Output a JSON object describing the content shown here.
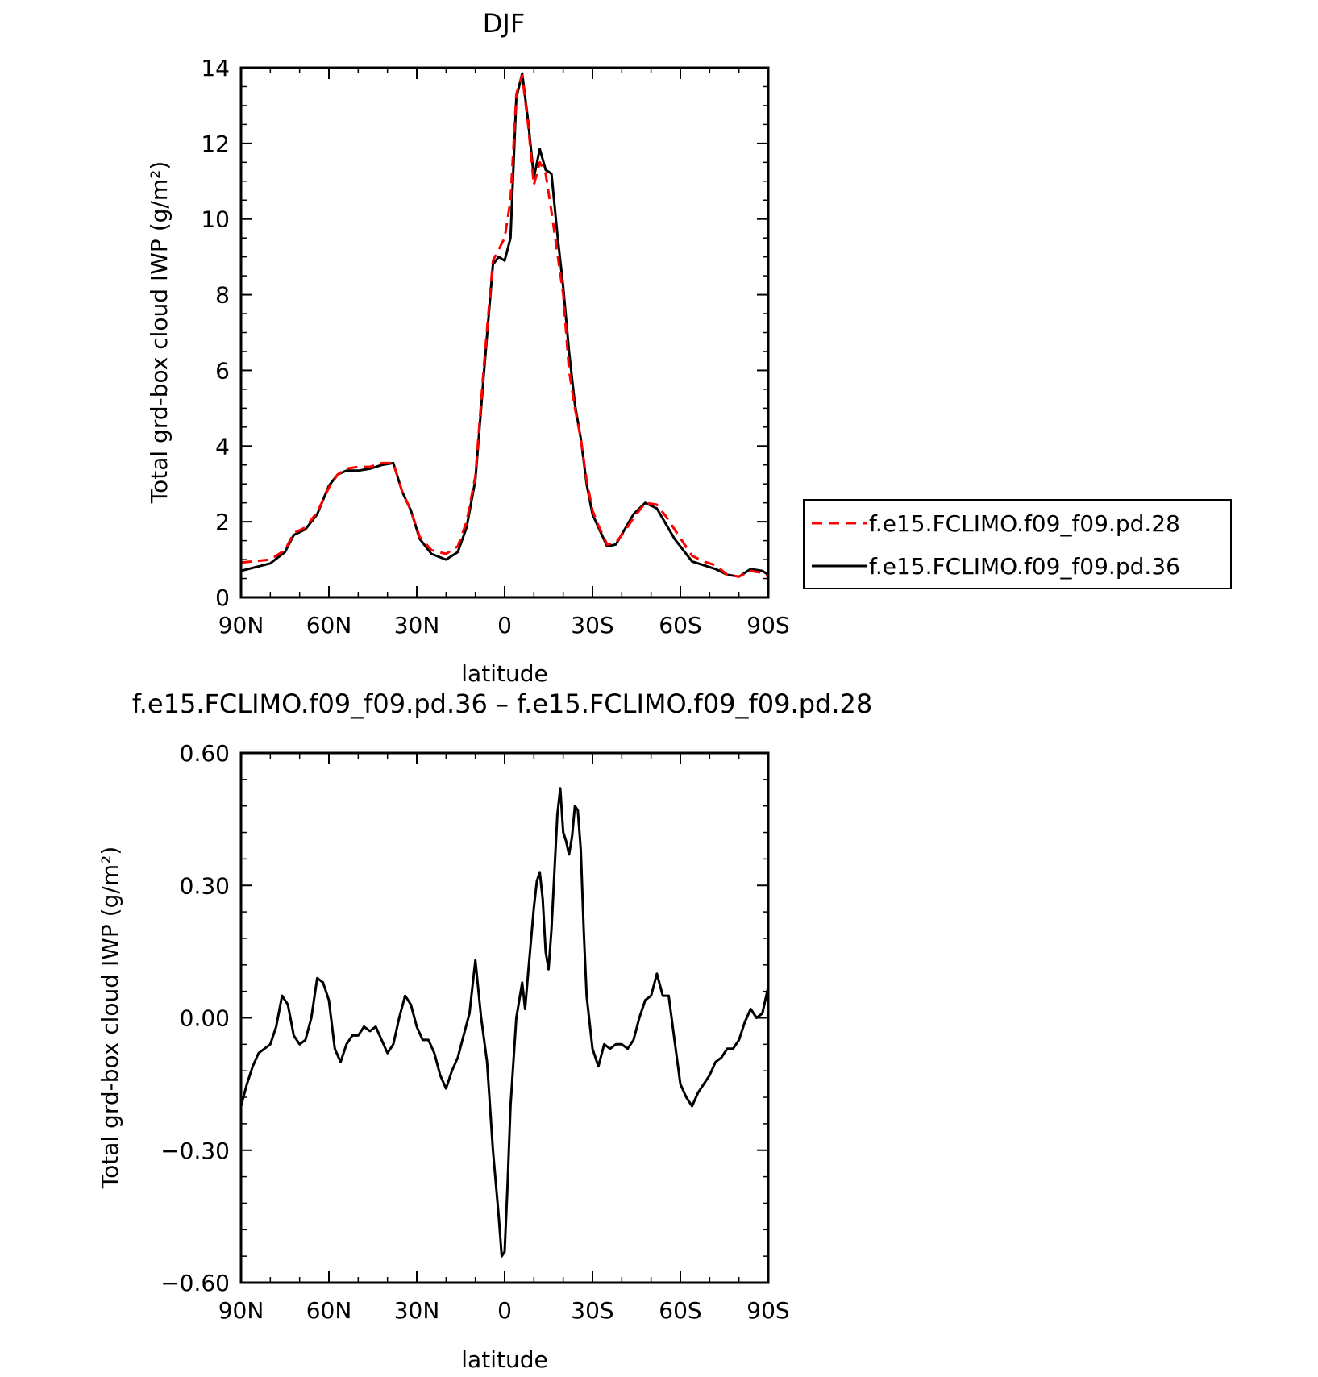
{
  "chart_data": [
    {
      "type": "line",
      "title": "DJF",
      "xlabel": "latitude",
      "ylabel": "Total grd-box cloud IWP (g/m²)",
      "x_ticks": [
        "90N",
        "60N",
        "30N",
        "0",
        "30S",
        "60S",
        "90S"
      ],
      "x_tick_values": [
        -90,
        -60,
        -30,
        0,
        30,
        60,
        90
      ],
      "xlim": [
        -90,
        90
      ],
      "y_ticks": [
        "0",
        "2",
        "4",
        "6",
        "8",
        "10",
        "12",
        "14"
      ],
      "y_tick_values": [
        0,
        2,
        4,
        6,
        8,
        10,
        12,
        14
      ],
      "ylim": [
        0,
        14
      ],
      "grid": false,
      "legend_position": "outside-right",
      "series": [
        {
          "name": "f.e15.FCLIMO.f09_f09.pd.28",
          "color": "#ff0000",
          "dash": "dashed",
          "x": [
            -90,
            -80,
            -75,
            -72,
            -68,
            -64,
            -60,
            -57,
            -54,
            -50,
            -46,
            -42,
            -38,
            -35,
            -32,
            -29,
            -25,
            -20,
            -16,
            -13,
            -10,
            -7,
            -4,
            -2,
            0,
            2,
            4,
            6,
            8,
            10,
            12,
            14,
            16,
            18,
            20,
            22,
            24,
            26,
            28,
            30,
            32,
            35,
            38,
            41,
            44,
            48,
            52,
            55,
            58,
            61,
            64,
            68,
            72,
            76,
            80,
            84,
            88,
            90
          ],
          "y": [
            0.92,
            1.0,
            1.25,
            1.7,
            1.85,
            2.25,
            2.9,
            3.25,
            3.4,
            3.45,
            3.45,
            3.55,
            3.55,
            2.8,
            2.3,
            1.6,
            1.25,
            1.15,
            1.35,
            2.0,
            3.2,
            6.2,
            8.9,
            9.2,
            9.5,
            10.5,
            13.3,
            13.8,
            12.5,
            10.9,
            11.5,
            11.2,
            10.2,
            9.1,
            8.0,
            6.0,
            5.0,
            4.2,
            3.1,
            2.3,
            1.9,
            1.4,
            1.45,
            1.75,
            2.1,
            2.5,
            2.45,
            2.15,
            1.8,
            1.45,
            1.1,
            0.95,
            0.85,
            0.6,
            0.55,
            0.7,
            0.65,
            0.55
          ]
        },
        {
          "name": "f.e15.FCLIMO.f09_f09.pd.36",
          "color": "#000000",
          "dash": "solid",
          "x": [
            -90,
            -80,
            -75,
            -72,
            -68,
            -64,
            -60,
            -57,
            -54,
            -50,
            -46,
            -42,
            -38,
            -35,
            -32,
            -29,
            -25,
            -20,
            -16,
            -13,
            -10,
            -7,
            -4,
            -2,
            0,
            2,
            4,
            6,
            8,
            10,
            12,
            14,
            16,
            18,
            20,
            22,
            24,
            26,
            28,
            30,
            32,
            35,
            38,
            41,
            44,
            48,
            52,
            55,
            58,
            61,
            64,
            68,
            72,
            76,
            80,
            84,
            88,
            90
          ],
          "y": [
            0.7,
            0.9,
            1.2,
            1.65,
            1.8,
            2.2,
            2.95,
            3.25,
            3.35,
            3.35,
            3.4,
            3.5,
            3.55,
            2.8,
            2.3,
            1.55,
            1.15,
            1.0,
            1.2,
            1.85,
            3.1,
            6.0,
            8.8,
            9.0,
            8.9,
            9.5,
            13.2,
            13.85,
            12.6,
            11.1,
            11.85,
            11.3,
            11.2,
            9.6,
            8.2,
            6.5,
            5.1,
            4.2,
            3.0,
            2.2,
            1.85,
            1.35,
            1.4,
            1.8,
            2.2,
            2.5,
            2.35,
            1.95,
            1.55,
            1.25,
            0.95,
            0.85,
            0.75,
            0.6,
            0.55,
            0.75,
            0.7,
            0.6
          ]
        }
      ]
    },
    {
      "type": "line",
      "title": "f.e15.FCLIMO.f09_f09.pd.36 – f.e15.FCLIMO.f09_f09.pd.28",
      "xlabel": "latitude",
      "ylabel": "Total grd-box cloud IWP (g/m²)",
      "x_ticks": [
        "90N",
        "60N",
        "30N",
        "0",
        "30S",
        "60S",
        "90S"
      ],
      "x_tick_values": [
        -90,
        -60,
        -30,
        0,
        30,
        60,
        90
      ],
      "xlim": [
        -90,
        90
      ],
      "y_ticks": [
        "−0.60",
        "−0.30",
        "0.00",
        "0.30",
        "0.60"
      ],
      "y_tick_values": [
        -0.6,
        -0.3,
        0.0,
        0.3,
        0.6
      ],
      "ylim": [
        -0.6,
        0.6
      ],
      "grid": false,
      "series": [
        {
          "color": "#000000",
          "dash": "solid",
          "x": [
            -90,
            -88,
            -86,
            -84,
            -82,
            -80,
            -78,
            -76,
            -74,
            -72,
            -70,
            -68,
            -66,
            -64,
            -62,
            -60,
            -58,
            -56,
            -54,
            -52,
            -50,
            -48,
            -46,
            -44,
            -42,
            -40,
            -38,
            -36,
            -34,
            -32,
            -30,
            -28,
            -26,
            -24,
            -22,
            -20,
            -18,
            -16,
            -14,
            -12,
            -10,
            -8,
            -6,
            -4,
            -2,
            -1,
            0,
            1,
            2,
            4,
            6,
            7,
            8,
            10,
            11,
            12,
            13,
            14,
            15,
            16,
            18,
            19,
            20,
            21,
            22,
            23,
            24,
            25,
            26,
            27,
            28,
            30,
            32,
            34,
            36,
            38,
            40,
            42,
            44,
            46,
            48,
            50,
            52,
            54,
            56,
            58,
            60,
            62,
            64,
            66,
            68,
            70,
            72,
            74,
            76,
            78,
            80,
            82,
            84,
            86,
            88,
            90
          ],
          "y": [
            -0.2,
            -0.15,
            -0.11,
            -0.08,
            -0.07,
            -0.06,
            -0.02,
            0.05,
            0.03,
            -0.04,
            -0.06,
            -0.05,
            0.0,
            0.09,
            0.08,
            0.04,
            -0.07,
            -0.1,
            -0.06,
            -0.04,
            -0.04,
            -0.02,
            -0.03,
            -0.02,
            -0.05,
            -0.08,
            -0.06,
            0.0,
            0.05,
            0.03,
            -0.02,
            -0.05,
            -0.05,
            -0.08,
            -0.13,
            -0.16,
            -0.12,
            -0.09,
            -0.04,
            0.01,
            0.13,
            0.0,
            -0.1,
            -0.3,
            -0.45,
            -0.54,
            -0.53,
            -0.38,
            -0.2,
            0.0,
            0.08,
            0.02,
            0.1,
            0.25,
            0.31,
            0.33,
            0.27,
            0.15,
            0.11,
            0.2,
            0.46,
            0.52,
            0.42,
            0.4,
            0.37,
            0.41,
            0.48,
            0.47,
            0.38,
            0.2,
            0.05,
            -0.07,
            -0.11,
            -0.06,
            -0.07,
            -0.06,
            -0.06,
            -0.07,
            -0.05,
            0.0,
            0.04,
            0.05,
            0.1,
            0.05,
            0.05,
            -0.05,
            -0.15,
            -0.18,
            -0.2,
            -0.17,
            -0.15,
            -0.13,
            -0.1,
            -0.09,
            -0.07,
            -0.07,
            -0.05,
            -0.01,
            0.02,
            0.0,
            0.01,
            0.07
          ]
        }
      ]
    }
  ]
}
